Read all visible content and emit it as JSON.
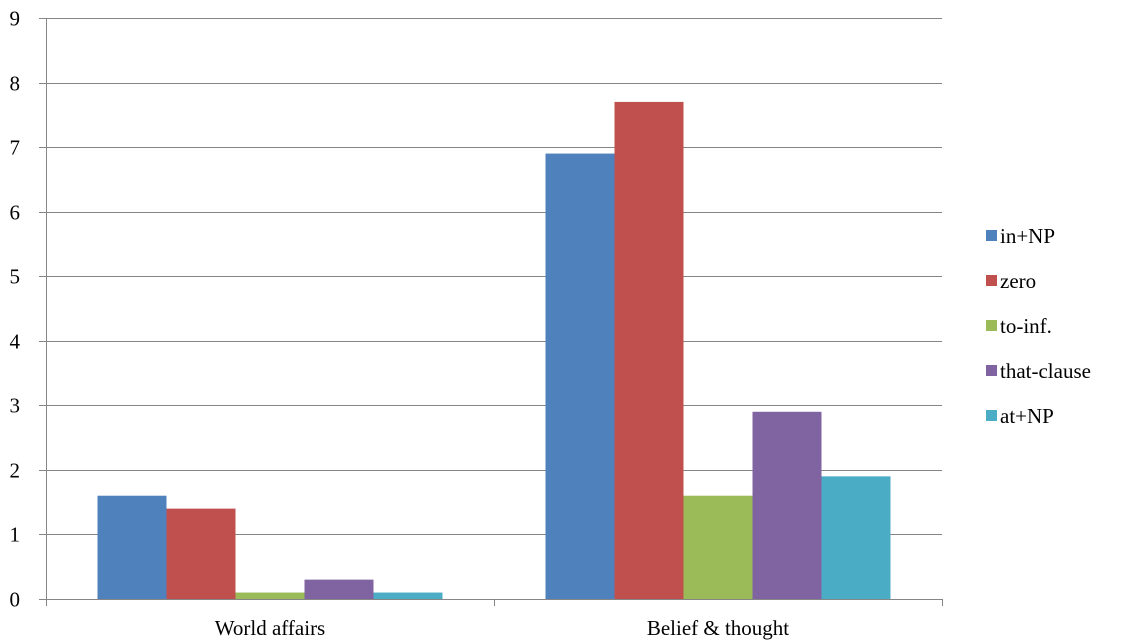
{
  "chart_data": {
    "type": "bar",
    "title": "",
    "xlabel": "",
    "ylabel": "",
    "categories": [
      "World affairs",
      "Belief & thought"
    ],
    "series": [
      {
        "name": "in+NP",
        "color": "#4F81BD",
        "values": [
          1.6,
          6.9
        ]
      },
      {
        "name": "zero",
        "color": "#C0504D",
        "values": [
          1.4,
          7.7
        ]
      },
      {
        "name": "to-inf.",
        "color": "#9BBB59",
        "values": [
          0.1,
          1.6
        ]
      },
      {
        "name": "that-clause",
        "color": "#8064A2",
        "values": [
          0.3,
          2.9
        ]
      },
      {
        "name": "at+NP",
        "color": "#4BACC6",
        "values": [
          0.1,
          1.9
        ]
      }
    ],
    "ylim": [
      0,
      9
    ],
    "yticks": [
      "0",
      "1",
      "2",
      "3",
      "4",
      "5",
      "6",
      "7",
      "8",
      "9"
    ],
    "grid": true,
    "legend_position": "right"
  }
}
